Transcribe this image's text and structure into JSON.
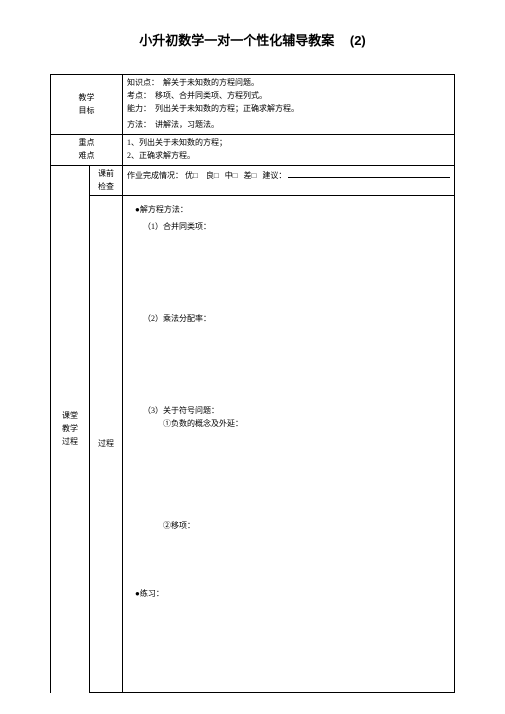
{
  "title_main": "小升初数学一对一个性化辅导教案",
  "title_num": "(2)",
  "rows": {
    "goal_label": "教学\n目标",
    "goal_l1_label": "知识点：",
    "goal_l1": "解关于未知数的方程问题。",
    "goal_l2_label": "考点：",
    "goal_l2": "移项、合并同类项、方程列式。",
    "goal_l3_label": "能力：",
    "goal_l3": "列出关于未知数的方程；正确求解方程。",
    "goal_l4_label": "方法：",
    "goal_l4": "讲解法，习题法。",
    "key_label": "重点\n难点",
    "key_l1": "1、列出关于未知数的方程；",
    "key_l2": "2、正确求解方程。",
    "precheck_label": "课前\n检查",
    "hw_prefix": "作业完成情况：",
    "hw_opt1": "优□",
    "hw_opt2": "良□",
    "hw_opt3": "中□",
    "hw_opt4": "差□",
    "hw_suggest": "建议：",
    "proc_label_outer": "课堂\n教学\n过程",
    "proc_label_inner": "过程",
    "c_heading": "●解方程方法：",
    "c_item1": "（1）合并同类项：",
    "c_item2": "（2）乘法分配率：",
    "c_item3": "（3）关于符号问题：",
    "c_item3a": "①负数的概念及外延：",
    "c_item3b": "②移项：",
    "c_practice": "●练习："
  }
}
